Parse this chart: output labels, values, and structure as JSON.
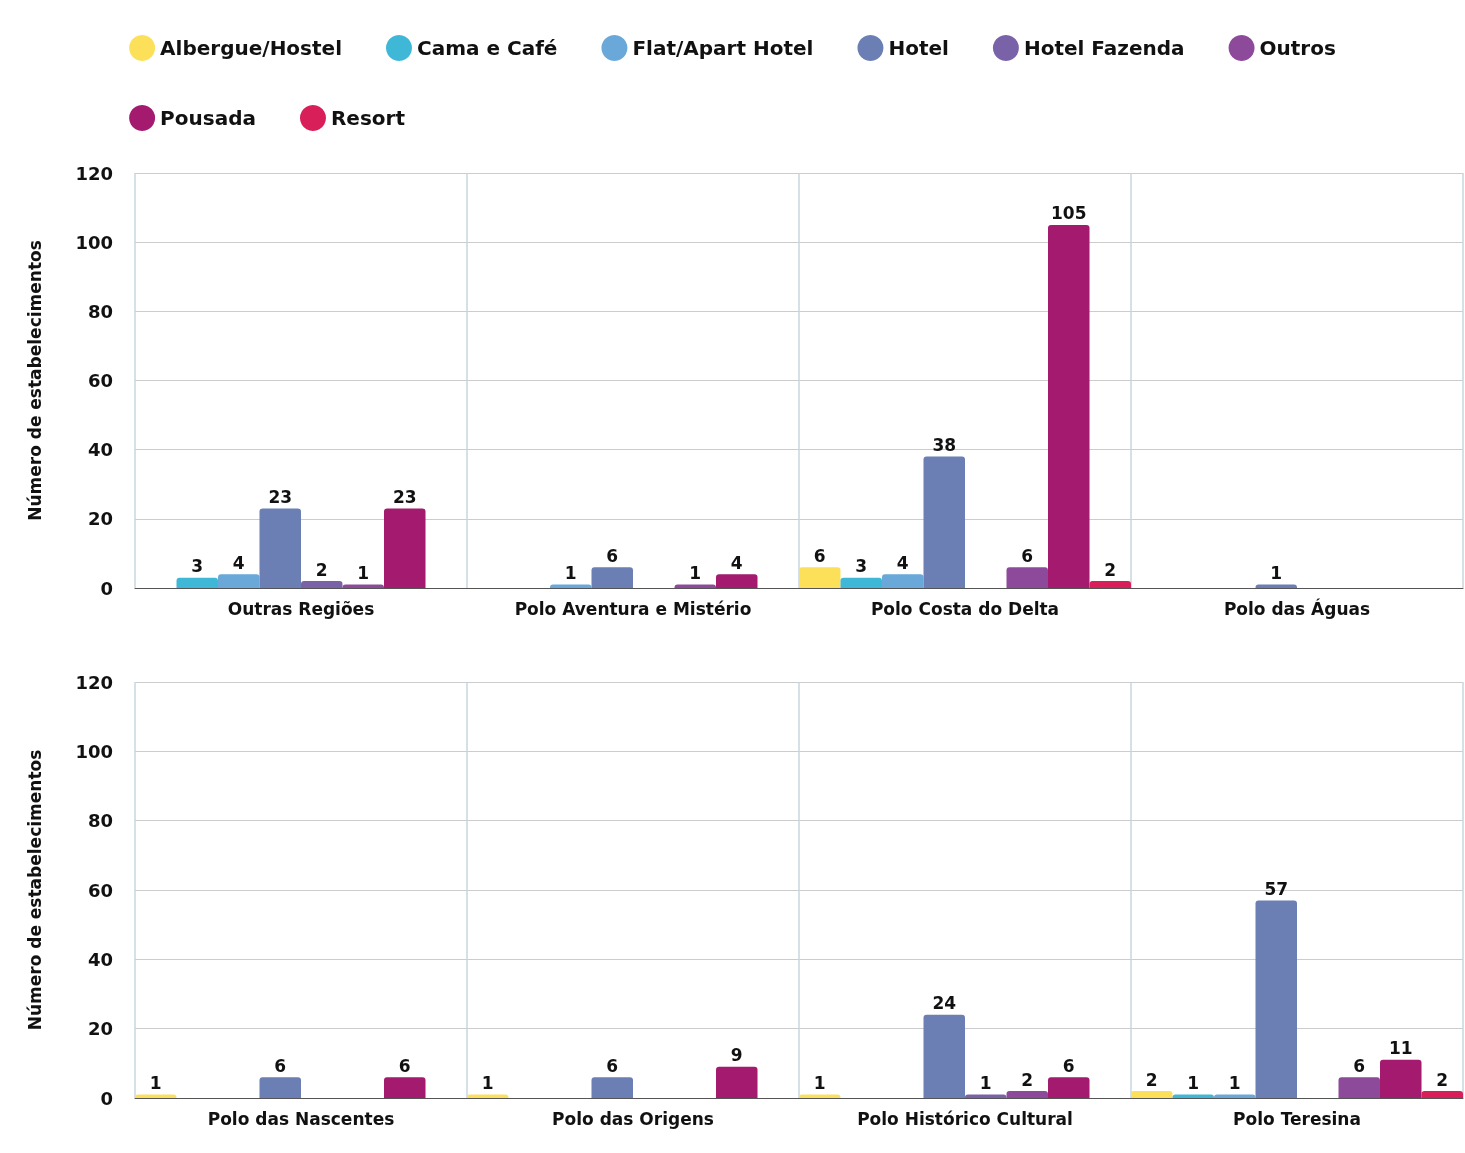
{
  "chart_data": [
    {
      "type": "bar",
      "ylabel": "Número de estabelecimentos",
      "categories": [
        "Outras Regiões",
        "Polo Aventura e Mistério",
        "Polo Costa do Delta",
        "Polo das Águas"
      ],
      "series": [
        {
          "name": "Albergue/Hostel",
          "color": "#fde05a",
          "values": [
            null,
            null,
            6,
            null
          ]
        },
        {
          "name": "Cama e Café",
          "color": "#3fb8d8",
          "values": [
            3,
            null,
            3,
            null
          ]
        },
        {
          "name": "Flat/Apart Hotel",
          "color": "#6aa8d9",
          "values": [
            4,
            1,
            4,
            null
          ]
        },
        {
          "name": "Hotel",
          "color": "#6b7fb5",
          "values": [
            23,
            6,
            38,
            1
          ]
        },
        {
          "name": "Hotel Fazenda",
          "color": "#7a62a8",
          "values": [
            2,
            null,
            null,
            null
          ]
        },
        {
          "name": "Outros",
          "color": "#8e4a9a",
          "values": [
            1,
            1,
            6,
            null
          ]
        },
        {
          "name": "Pousada",
          "color": "#a31a6e",
          "values": [
            23,
            4,
            105,
            null
          ]
        },
        {
          "name": "Resort",
          "color": "#d81f5a",
          "values": [
            null,
            null,
            2,
            null
          ]
        }
      ],
      "ylim": [
        0,
        120
      ],
      "yticks": [
        0,
        20,
        40,
        60,
        80,
        100,
        120
      ],
      "data_labels": true,
      "grid": true,
      "legend": "top"
    },
    {
      "type": "bar",
      "ylabel": "Número de estabelecimentos",
      "categories": [
        "Polo das Nascentes",
        "Polo das Origens",
        "Polo Histórico Cultural",
        "Polo Teresina"
      ],
      "series": [
        {
          "color": "#fde05a",
          "values": [
            1,
            1,
            1,
            2
          ]
        },
        {
          "color": "#3fb8d8",
          "values": [
            null,
            null,
            null,
            1
          ]
        },
        {
          "color": "#6aa8d9",
          "values": [
            null,
            null,
            null,
            1
          ]
        },
        {
          "color": "#6b7fb5",
          "values": [
            6,
            6,
            24,
            57
          ]
        },
        {
          "color": "#7a62a8",
          "values": [
            null,
            null,
            1,
            null
          ]
        },
        {
          "color": "#8e4a9a",
          "values": [
            null,
            null,
            2,
            6
          ]
        },
        {
          "color": "#a31a6e",
          "values": [
            6,
            9,
            6,
            11
          ]
        },
        {
          "color": "#d81f5a",
          "values": [
            null,
            null,
            null,
            2
          ]
        }
      ],
      "ylim": [
        0,
        120
      ],
      "yticks": [
        0,
        20,
        40,
        60,
        80,
        100,
        120
      ],
      "data_labels": true,
      "grid": true
    }
  ]
}
